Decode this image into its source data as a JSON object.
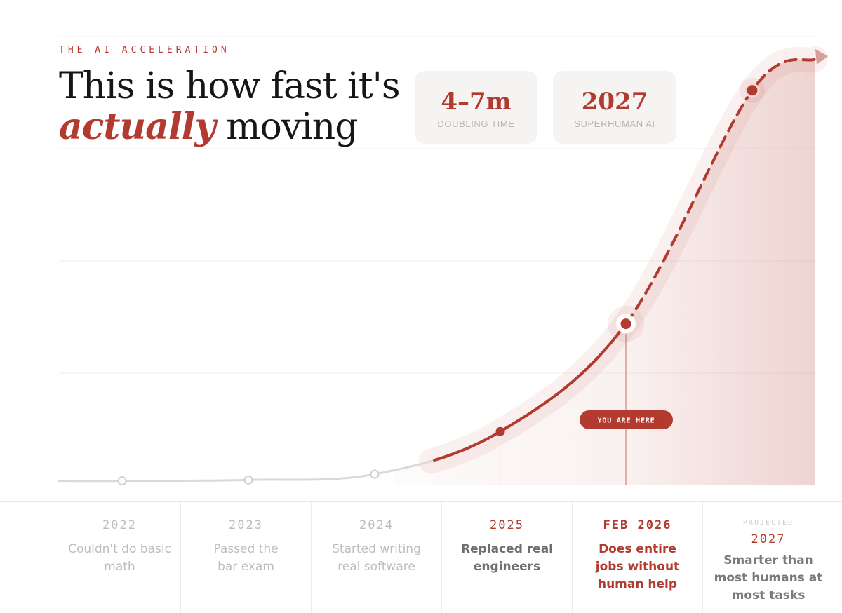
{
  "kicker": "THE AI ACCELERATION",
  "headline": {
    "line1": "This is how fast it's",
    "emphasis": "actually",
    "line2_rest": " moving"
  },
  "stats": [
    {
      "value": "4–7m",
      "label": "DOUBLING TIME"
    },
    {
      "value": "2027",
      "label": "SUPERHUMAN AI"
    }
  ],
  "you_are_here_label": "YOU ARE HERE",
  "timeline": [
    {
      "year": "2022",
      "text": "Couldn't do basic math",
      "state": "past"
    },
    {
      "year": "2023",
      "text": "Passed the bar exam",
      "state": "past"
    },
    {
      "year": "2024",
      "text": "Started writing real software",
      "state": "past"
    },
    {
      "year": "2025",
      "text": "Replaced real engineers",
      "state": "done"
    },
    {
      "year": "FEB 2026",
      "text": "Does entire jobs without human help",
      "state": "now"
    },
    {
      "year": "2027",
      "text": "Smarter than most humans at most tasks",
      "state": "future",
      "tag": "PROJECTED"
    }
  ],
  "colors": {
    "accent": "#b23a2e",
    "muted": "#bdbdbd",
    "card_bg": "#f6f4f3",
    "track": "#d9d9d9"
  },
  "chart_data": {
    "type": "line",
    "x": [
      "2022",
      "2023",
      "2024",
      "2025",
      "FEB 2026",
      "2027"
    ],
    "y": [
      1,
      1.2,
      2.5,
      12,
      36,
      88
    ],
    "ylim": [
      0,
      100
    ],
    "grid": true,
    "segments": [
      {
        "range": [
          "2022",
          "2024"
        ],
        "style": "solid-grey",
        "markers": "hollow"
      },
      {
        "range": [
          "2024",
          "FEB 2026"
        ],
        "style": "solid-red",
        "markers": "filled"
      },
      {
        "range": [
          "FEB 2026",
          "2027"
        ],
        "style": "dashed-red",
        "markers": "filled"
      }
    ],
    "highlight": {
      "x": "FEB 2026",
      "label": "YOU ARE HERE"
    }
  }
}
